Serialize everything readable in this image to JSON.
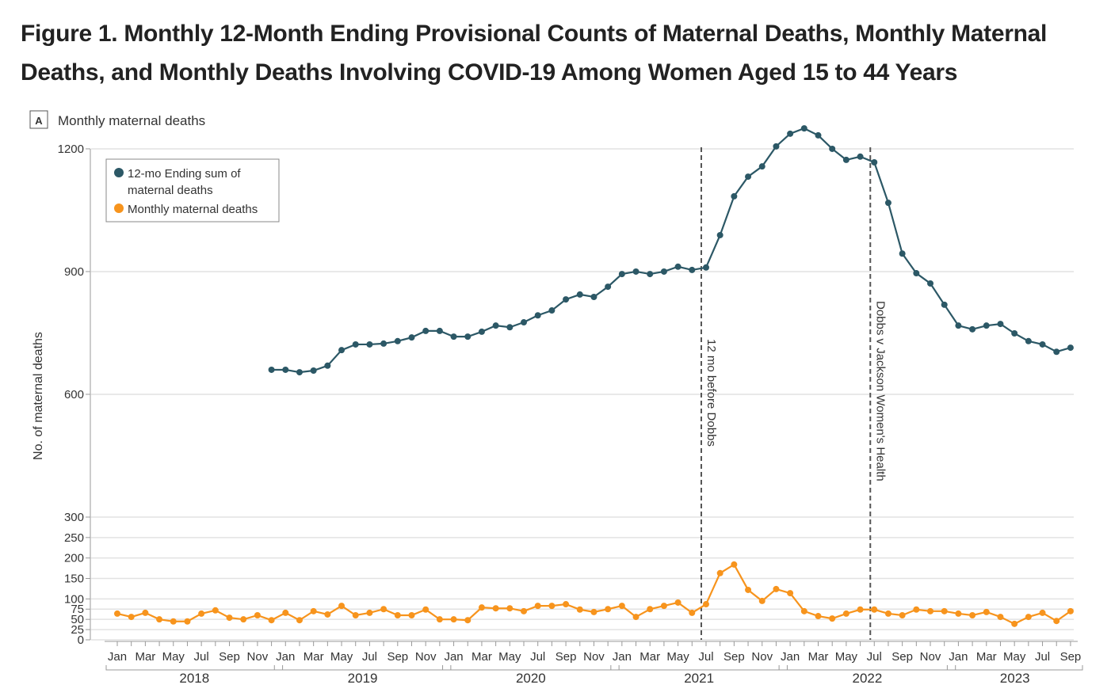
{
  "title": "Figure 1.  Monthly 12-Month Ending Provisional Counts of Maternal Deaths, Monthly Maternal Deaths, and Monthly Deaths Involving COVID-19 Among Women Aged 15 to 44 Years",
  "chart_data": {
    "type": "line",
    "panel_label": "A",
    "panel_title": "Monthly maternal deaths",
    "ylabel": "No. of maternal deaths",
    "yticks": [
      0,
      25,
      50,
      75,
      100,
      150,
      200,
      250,
      300,
      600,
      900,
      1200
    ],
    "ylim": [
      0,
      1250
    ],
    "month_labels": [
      "Jan",
      "Mar",
      "May",
      "Jul",
      "Sep",
      "Nov"
    ],
    "years": [
      "2018",
      "2019",
      "2020",
      "2021",
      "2022",
      "2023"
    ],
    "x_start": "2018-01",
    "x_end": "2023-09",
    "legend": [
      "12-mo Ending sum of maternal deaths",
      "Monthly maternal deaths"
    ],
    "legend_position": "top-left",
    "annotations": [
      {
        "month_index": 42,
        "label": "12 mo before Dobbs"
      },
      {
        "month_index": 54,
        "label": "Dobbs v Jackson Women's Health"
      }
    ],
    "series": [
      {
        "name": "12-mo Ending sum of maternal deaths",
        "color": "#2c5866",
        "start_index": 11,
        "values": [
          660,
          660,
          654,
          658,
          670,
          708,
          722,
          722,
          724,
          730,
          739,
          755,
          755,
          741,
          741,
          753,
          768,
          764,
          776,
          793,
          805,
          832,
          844,
          838,
          863,
          894,
          900,
          894,
          900,
          912,
          904,
          910,
          989,
          1084,
          1132,
          1157,
          1206,
          1237,
          1250,
          1233,
          1200,
          1173,
          1181,
          1167,
          1068,
          944,
          896,
          871,
          819,
          768,
          759,
          768,
          772,
          749,
          730,
          722,
          704,
          714
        ]
      },
      {
        "name": "Monthly maternal deaths",
        "color": "#f7941d",
        "start_index": 0,
        "values": [
          64,
          56,
          66,
          50,
          45,
          45,
          64,
          72,
          54,
          50,
          60,
          48,
          66,
          48,
          70,
          62,
          83,
          60,
          66,
          75,
          60,
          60,
          74,
          50,
          50,
          48,
          79,
          77,
          77,
          70,
          83,
          83,
          87,
          74,
          68,
          75,
          83,
          56,
          75,
          83,
          91,
          66,
          87,
          163,
          184,
          122,
          95,
          124,
          114,
          70,
          58,
          52,
          64,
          74,
          74,
          64,
          60,
          74,
          70,
          70,
          64,
          60,
          68,
          56,
          39,
          56,
          66,
          46,
          70
        ]
      }
    ]
  }
}
